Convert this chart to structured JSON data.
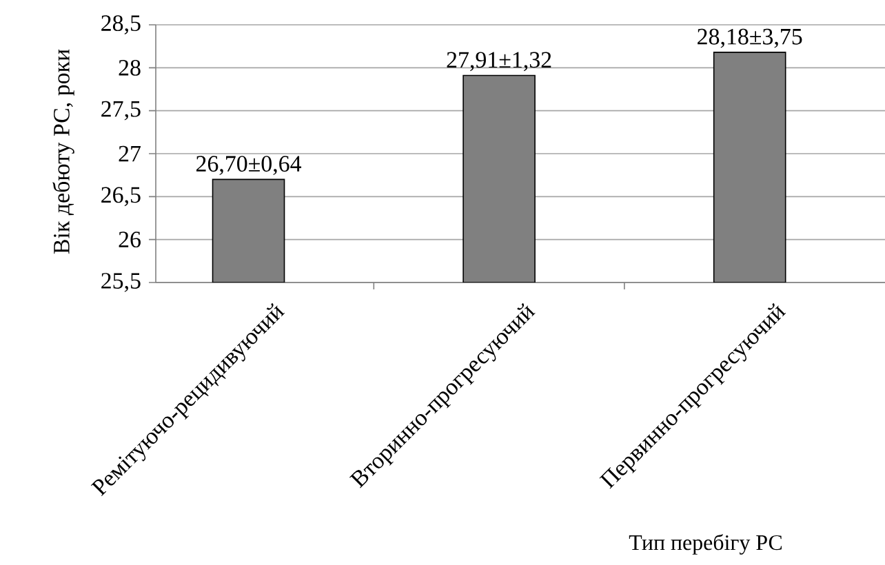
{
  "chart_data": {
    "type": "bar",
    "ylabel": "Вік дебюту РС, роки",
    "xlabel": "Тип перебігу РС",
    "categories": [
      "Ремітуючо-рецидивуючий",
      "Вторинно-прогресуючий",
      "Первинно-прогресуючий"
    ],
    "values": [
      26.7,
      27.91,
      28.18
    ],
    "value_labels": [
      "26,70±0,64",
      "27,91±1,32",
      "28,18±3,75"
    ],
    "color": "#808080",
    "ylim": [
      25.5,
      28.5
    ],
    "yticks": [
      {
        "value": 25.5,
        "label": "25,5"
      },
      26,
      {
        "value": 26.5,
        "label": "26,5"
      },
      27,
      {
        "value": 27.5,
        "label": "27,5"
      },
      28,
      {
        "value": 28.5,
        "label": "28,5"
      }
    ],
    "grid": "y"
  }
}
